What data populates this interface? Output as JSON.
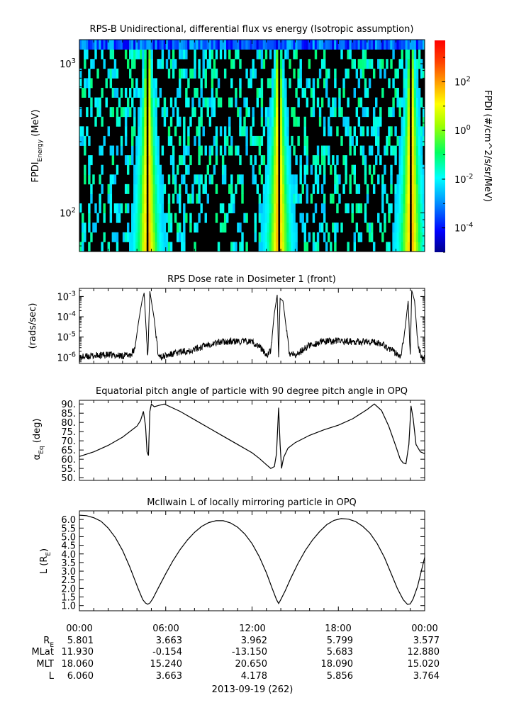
{
  "panels": {
    "spectrogram": {
      "title": "RPS-B  Unidirectional, differential flux vs energy (Isotropic assumption)",
      "ylabel_main": "FPDI",
      "ylabel_sub": "Energy",
      "ylabel_unit": " (MeV)",
      "colorbar_label": "FPDI (#/cm^2/s/sr/MeV)"
    },
    "dose": {
      "title": "RPS  Dose rate in Dosimeter 1 (front)",
      "ylabel": "(rads/sec)"
    },
    "pitch": {
      "title": "Equatorial pitch angle of particle with 90 degree pitch angle in OPQ",
      "ylabel_main": "α",
      "ylabel_sub": "Eq",
      "ylabel_unit": " (deg)"
    },
    "lshell": {
      "title": "McIlwain L of locally mirroring particle in OPQ",
      "ylabel_main": "L (R",
      "ylabel_sub": "E",
      "ylabel_close": ")"
    }
  },
  "ephemeris": {
    "row_labels": [
      "R",
      "MLat",
      "MLT",
      "L"
    ],
    "re_sub": "E",
    "times": [
      "00:00",
      "06:00",
      "12:00",
      "18:00",
      "00:00"
    ],
    "rows": [
      [
        "5.801",
        "3.663",
        "3.962",
        "5.799",
        "3.577"
      ],
      [
        "11.930",
        "-0.154",
        "-13.150",
        "5.683",
        "12.880"
      ],
      [
        "18.060",
        "15.240",
        "20.650",
        "18.090",
        "15.020"
      ],
      [
        "6.060",
        "3.663",
        "4.178",
        "5.856",
        "3.764"
      ]
    ],
    "date_label": "2013-09-19 (262)"
  },
  "chart_data": [
    {
      "type": "heatmap",
      "title": "RPS-B  Unidirectional, differential flux vs energy (Isotropic assumption)",
      "xlabel": "",
      "ylabel": "FPDI Energy (MeV)",
      "y_scale": "log",
      "ylim": [
        55,
        1450
      ],
      "ytick_labels": [
        "10^2",
        "10^3"
      ],
      "x_range_hours": [
        0,
        24
      ],
      "colorbar": {
        "label": "FPDI (#/cm^2/s/sr/MeV)",
        "scale": "log",
        "range": [
          1e-05,
          5000
        ],
        "tick_labels": [
          "10^-4",
          "10^-2",
          "10^0",
          "10^2"
        ],
        "colors": [
          "#00008b",
          "#0000ff",
          "#00a0ff",
          "#00ffff",
          "#00ff60",
          "#a0ff00",
          "#ffff00",
          "#ffa000",
          "#ff4000",
          "#ff0000"
        ]
      },
      "belt_crossings_hours": [
        4.75,
        13.85,
        23.05
      ],
      "peak_flux": 200,
      "background": "#000000"
    },
    {
      "type": "line",
      "title": "RPS  Dose rate in Dosimeter 1 (front)",
      "ylabel": "(rads/sec)",
      "y_scale": "log",
      "ylim": [
        5e-07,
        0.0025
      ],
      "ytick_labels": [
        "10^-6",
        "10^-5",
        "10^-4",
        "10^-3"
      ],
      "x": [
        0,
        1,
        2,
        3,
        3.6,
        3.85,
        4.1,
        4.35,
        4.5,
        4.6,
        4.75,
        4.9,
        5.0,
        5.2,
        5.45,
        5.7,
        6.0,
        7.0,
        8.0,
        9.0,
        10.0,
        11.0,
        12.0,
        12.6,
        13.0,
        13.3,
        13.55,
        13.75,
        13.85,
        13.95,
        14.15,
        14.4,
        14.6,
        15.0,
        16.0,
        17.0,
        18.0,
        19.0,
        20.0,
        21.0,
        22.0,
        22.35,
        22.65,
        22.85,
        23.0,
        23.1,
        23.3,
        23.55,
        23.8,
        24.0
      ],
      "values": [
        1e-06,
        1.2e-06,
        1.3e-06,
        1.2e-06,
        1.4e-06,
        2.5e-06,
        5e-05,
        0.0006,
        0.0015,
        8e-05,
        1e-06,
        0.0018,
        0.0006,
        8e-05,
        2e-06,
        1e-06,
        1.2e-06,
        1.8e-06,
        2.5e-06,
        4.5e-06,
        6e-06,
        6e-06,
        6e-06,
        3e-06,
        1.3e-06,
        2e-06,
        0.00015,
        0.0012,
        1e-06,
        0.0008,
        0.0006,
        2e-05,
        1.5e-06,
        1.2e-06,
        4e-06,
        6e-06,
        6.5e-06,
        6e-06,
        6e-06,
        5e-06,
        1.6e-06,
        1.3e-06,
        3e-05,
        0.0006,
        1e-06,
        0.002,
        0.0006,
        3e-06,
        1e-06,
        1.2e-06
      ]
    },
    {
      "type": "line",
      "title": "Equatorial pitch angle of particle with 90 degree pitch angle in OPQ",
      "ylabel": "αEq (deg)",
      "ylim": [
        48.5,
        92
      ],
      "yticks": [
        50,
        55,
        60,
        65,
        70,
        75,
        80,
        85,
        90
      ],
      "x": [
        0,
        1,
        2,
        3,
        4,
        4.25,
        4.45,
        4.6,
        4.7,
        4.8,
        4.9,
        5.0,
        5.2,
        5.5,
        5.9,
        7,
        8,
        9,
        10,
        11,
        12,
        12.5,
        13.0,
        13.3,
        13.55,
        13.7,
        13.85,
        13.95,
        14.05,
        14.2,
        14.5,
        15,
        16,
        17,
        18,
        19,
        20,
        20.5,
        21.0,
        21.5,
        22.0,
        22.3,
        22.5,
        22.7,
        22.9,
        23.05,
        23.2,
        23.4,
        23.7,
        24.0
      ],
      "values": [
        61.5,
        64,
        67.5,
        72,
        78,
        81,
        86,
        78,
        64,
        62,
        86,
        90,
        88.5,
        89.2,
        90,
        86,
        81.5,
        77,
        72.5,
        68,
        63.5,
        60.5,
        57,
        55,
        56,
        63,
        88,
        68,
        55,
        61,
        66,
        69,
        73,
        76,
        78.5,
        82,
        87,
        90,
        86.5,
        78,
        67,
        60,
        58,
        57.5,
        68,
        89,
        82,
        68,
        64,
        63
      ]
    },
    {
      "type": "line",
      "title": "McIlwain L of locally mirroring particle in OPQ",
      "ylabel": "L (RE)",
      "ylim": [
        0.7,
        6.5
      ],
      "yticks": [
        1,
        1.5,
        2,
        2.5,
        3,
        3.5,
        4,
        4.5,
        5,
        5.5,
        6
      ],
      "x": [
        0,
        0.5,
        1,
        1.5,
        2,
        2.5,
        3,
        3.5,
        3.8,
        4.1,
        4.4,
        4.6,
        4.75,
        4.9,
        5.1,
        5.5,
        6,
        6.5,
        7,
        7.5,
        8,
        8.5,
        9,
        9.5,
        10,
        10.5,
        11,
        11.5,
        12,
        12.5,
        13.0,
        13.4,
        13.7,
        13.85,
        14.0,
        14.3,
        14.7,
        15.2,
        15.7,
        16.2,
        16.7,
        17.2,
        17.7,
        18.2,
        18.7,
        19.2,
        19.7,
        20.2,
        20.7,
        21.2,
        21.7,
        22.1,
        22.5,
        22.8,
        23.0,
        23.2,
        23.5,
        24.0
      ],
      "values": [
        6.25,
        6.22,
        6.1,
        5.9,
        5.5,
        4.95,
        4.2,
        3.25,
        2.6,
        1.95,
        1.35,
        1.15,
        1.08,
        1.15,
        1.4,
        2.05,
        2.85,
        3.6,
        4.25,
        4.8,
        5.25,
        5.6,
        5.82,
        5.93,
        5.93,
        5.8,
        5.55,
        5.15,
        4.6,
        3.85,
        2.9,
        2.0,
        1.35,
        1.12,
        1.35,
        1.85,
        2.6,
        3.45,
        4.2,
        4.8,
        5.3,
        5.7,
        5.95,
        6.05,
        6.02,
        5.88,
        5.6,
        5.2,
        4.6,
        3.8,
        2.8,
        2.0,
        1.35,
        1.07,
        1.1,
        1.4,
        2.1,
        3.8
      ]
    }
  ]
}
